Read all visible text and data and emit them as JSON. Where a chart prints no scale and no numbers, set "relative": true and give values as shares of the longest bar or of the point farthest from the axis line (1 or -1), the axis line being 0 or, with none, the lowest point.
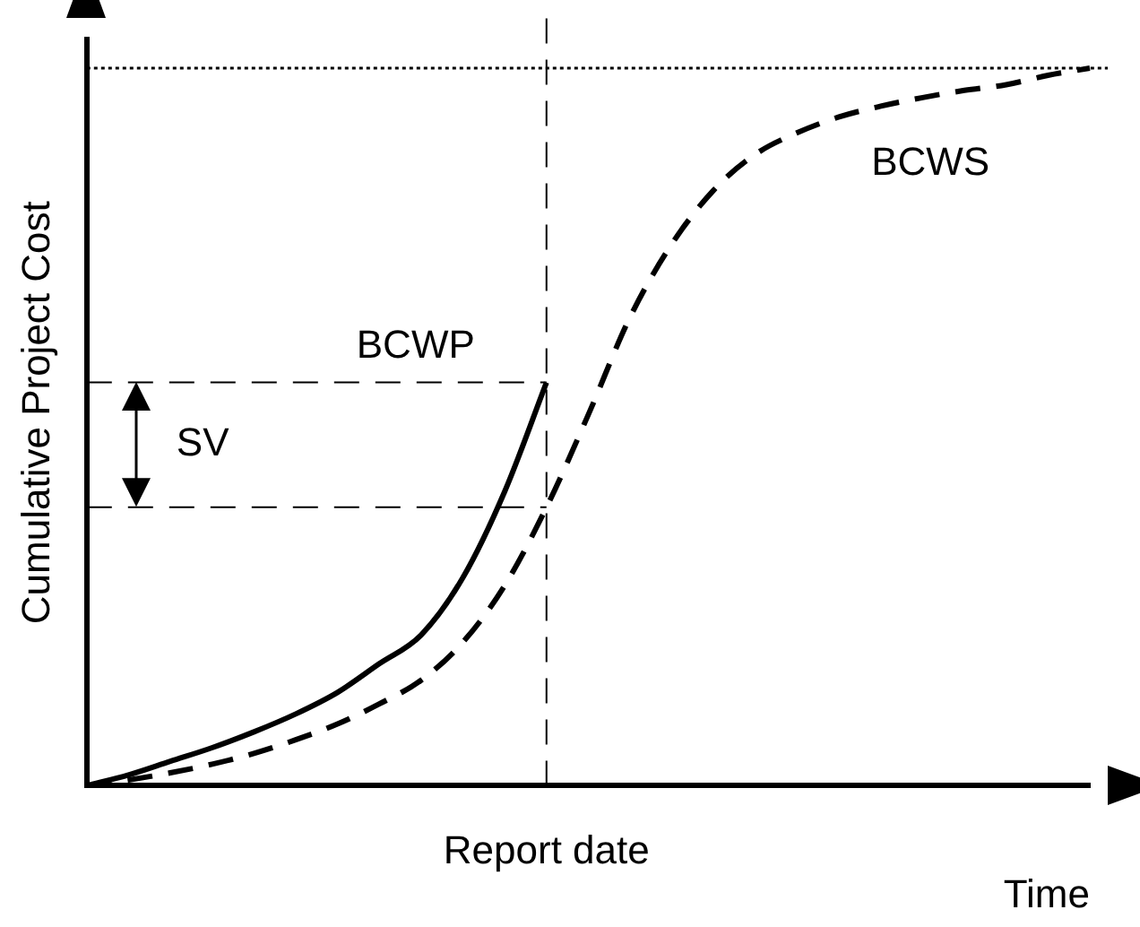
{
  "chart_data": {
    "type": "line",
    "relative": true,
    "ylabel": "Cumulative Project Cost",
    "xlabel": "Time",
    "categories": [
      null,
      null,
      null,
      null,
      null,
      null,
      null,
      null,
      null,
      null,
      null,
      null,
      null,
      null,
      null,
      null,
      null,
      null,
      null,
      null,
      null,
      null,
      null,
      null,
      null
    ],
    "series": [
      {
        "name": "BCWS",
        "color": "#000000",
        "line_style": "dashed",
        "values": [
          0,
          0.008,
          0.018,
          0.03,
          0.045,
          0.064,
          0.086,
          0.114,
          0.147,
          0.2,
          0.279,
          0.388,
          0.517,
          0.653,
          0.755,
          0.83,
          0.88,
          0.91,
          0.932,
          0.947,
          0.959,
          0.969,
          0.977,
          0.99,
          1
        ]
      },
      {
        "name": "BCWP",
        "color": "#000000",
        "line_style": "solid",
        "values": [
          0,
          0.015,
          0.034,
          0.053,
          0.075,
          0.1,
          0.13,
          0.17,
          0.21,
          0.29,
          0.41,
          0.562,
          null,
          null,
          null,
          null,
          null,
          null,
          null,
          null,
          null,
          null,
          null,
          null,
          null
        ]
      }
    ],
    "ref_lines": [
      {
        "axis": "y",
        "value": 0.562,
        "label": null,
        "line_style": "dashed",
        "color": "#000000"
      },
      {
        "axis": "y",
        "value": 0.388,
        "label": null,
        "line_style": "dashed",
        "color": "#000000"
      },
      {
        "axis": "y",
        "value": 1,
        "label": null,
        "line_style": "dotted",
        "color": "#000000"
      }
    ],
    "annotations": [
      "SV",
      "Report date"
    ],
    "grid": false,
    "legend": false,
    "marker": "none"
  }
}
